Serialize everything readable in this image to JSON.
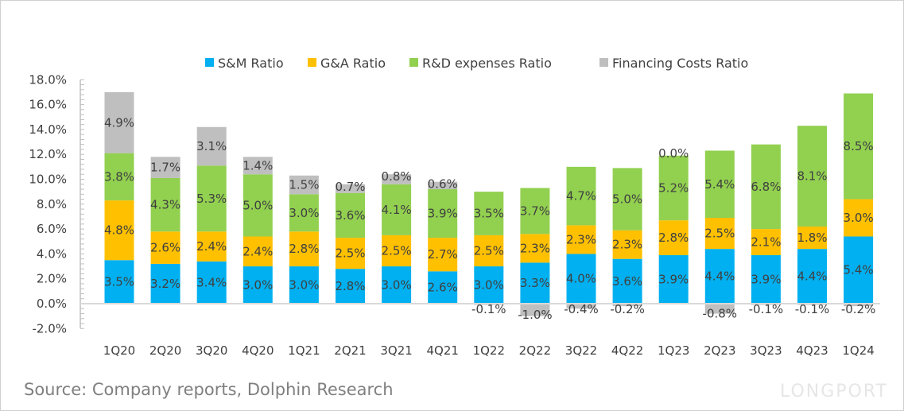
{
  "chart_data": {
    "type": "bar",
    "stacked": true,
    "categories": [
      "1Q20",
      "2Q20",
      "3Q20",
      "4Q20",
      "1Q21",
      "2Q21",
      "3Q21",
      "4Q21",
      "1Q22",
      "2Q22",
      "3Q22",
      "4Q22",
      "1Q23",
      "2Q23",
      "3Q23",
      "4Q23",
      "1Q24"
    ],
    "series": [
      {
        "name": "S&M Ratio",
        "color": "#00b0f0",
        "values": [
          3.5,
          3.2,
          3.4,
          3.0,
          3.0,
          2.8,
          3.0,
          2.6,
          3.0,
          3.3,
          4.0,
          3.6,
          3.9,
          4.4,
          3.9,
          4.4,
          5.4
        ]
      },
      {
        "name": "G&A Ratio",
        "color": "#ffc000",
        "values": [
          4.8,
          2.6,
          2.4,
          2.4,
          2.8,
          2.5,
          2.5,
          2.7,
          2.5,
          2.3,
          2.3,
          2.3,
          2.8,
          2.5,
          2.1,
          1.8,
          3.0
        ]
      },
      {
        "name": "R&D expenses Ratio",
        "color": "#92d050",
        "values": [
          3.8,
          4.3,
          5.3,
          5.0,
          3.0,
          3.6,
          4.1,
          3.9,
          3.5,
          3.7,
          4.7,
          5.0,
          5.2,
          5.4,
          6.8,
          8.1,
          8.5
        ]
      },
      {
        "name": "Financing Costs Ratio",
        "color": "#bfbfbf",
        "values": [
          4.9,
          1.7,
          3.1,
          1.4,
          1.5,
          0.7,
          0.8,
          0.6,
          -0.1,
          -1.0,
          -0.4,
          -0.2,
          0.0,
          -0.8,
          -0.1,
          -0.1,
          -0.2
        ]
      }
    ],
    "ylim": [
      -2,
      18
    ],
    "yticks": [
      "-2.0%",
      "0.0%",
      "2.0%",
      "4.0%",
      "6.0%",
      "8.0%",
      "10.0%",
      "12.0%",
      "14.0%",
      "16.0%",
      "18.0%"
    ],
    "legend_position": "top",
    "grid": false,
    "data_label_unit": "%"
  },
  "source": "Source: Company reports, Dolphin Research",
  "watermark": "LONGPORT"
}
